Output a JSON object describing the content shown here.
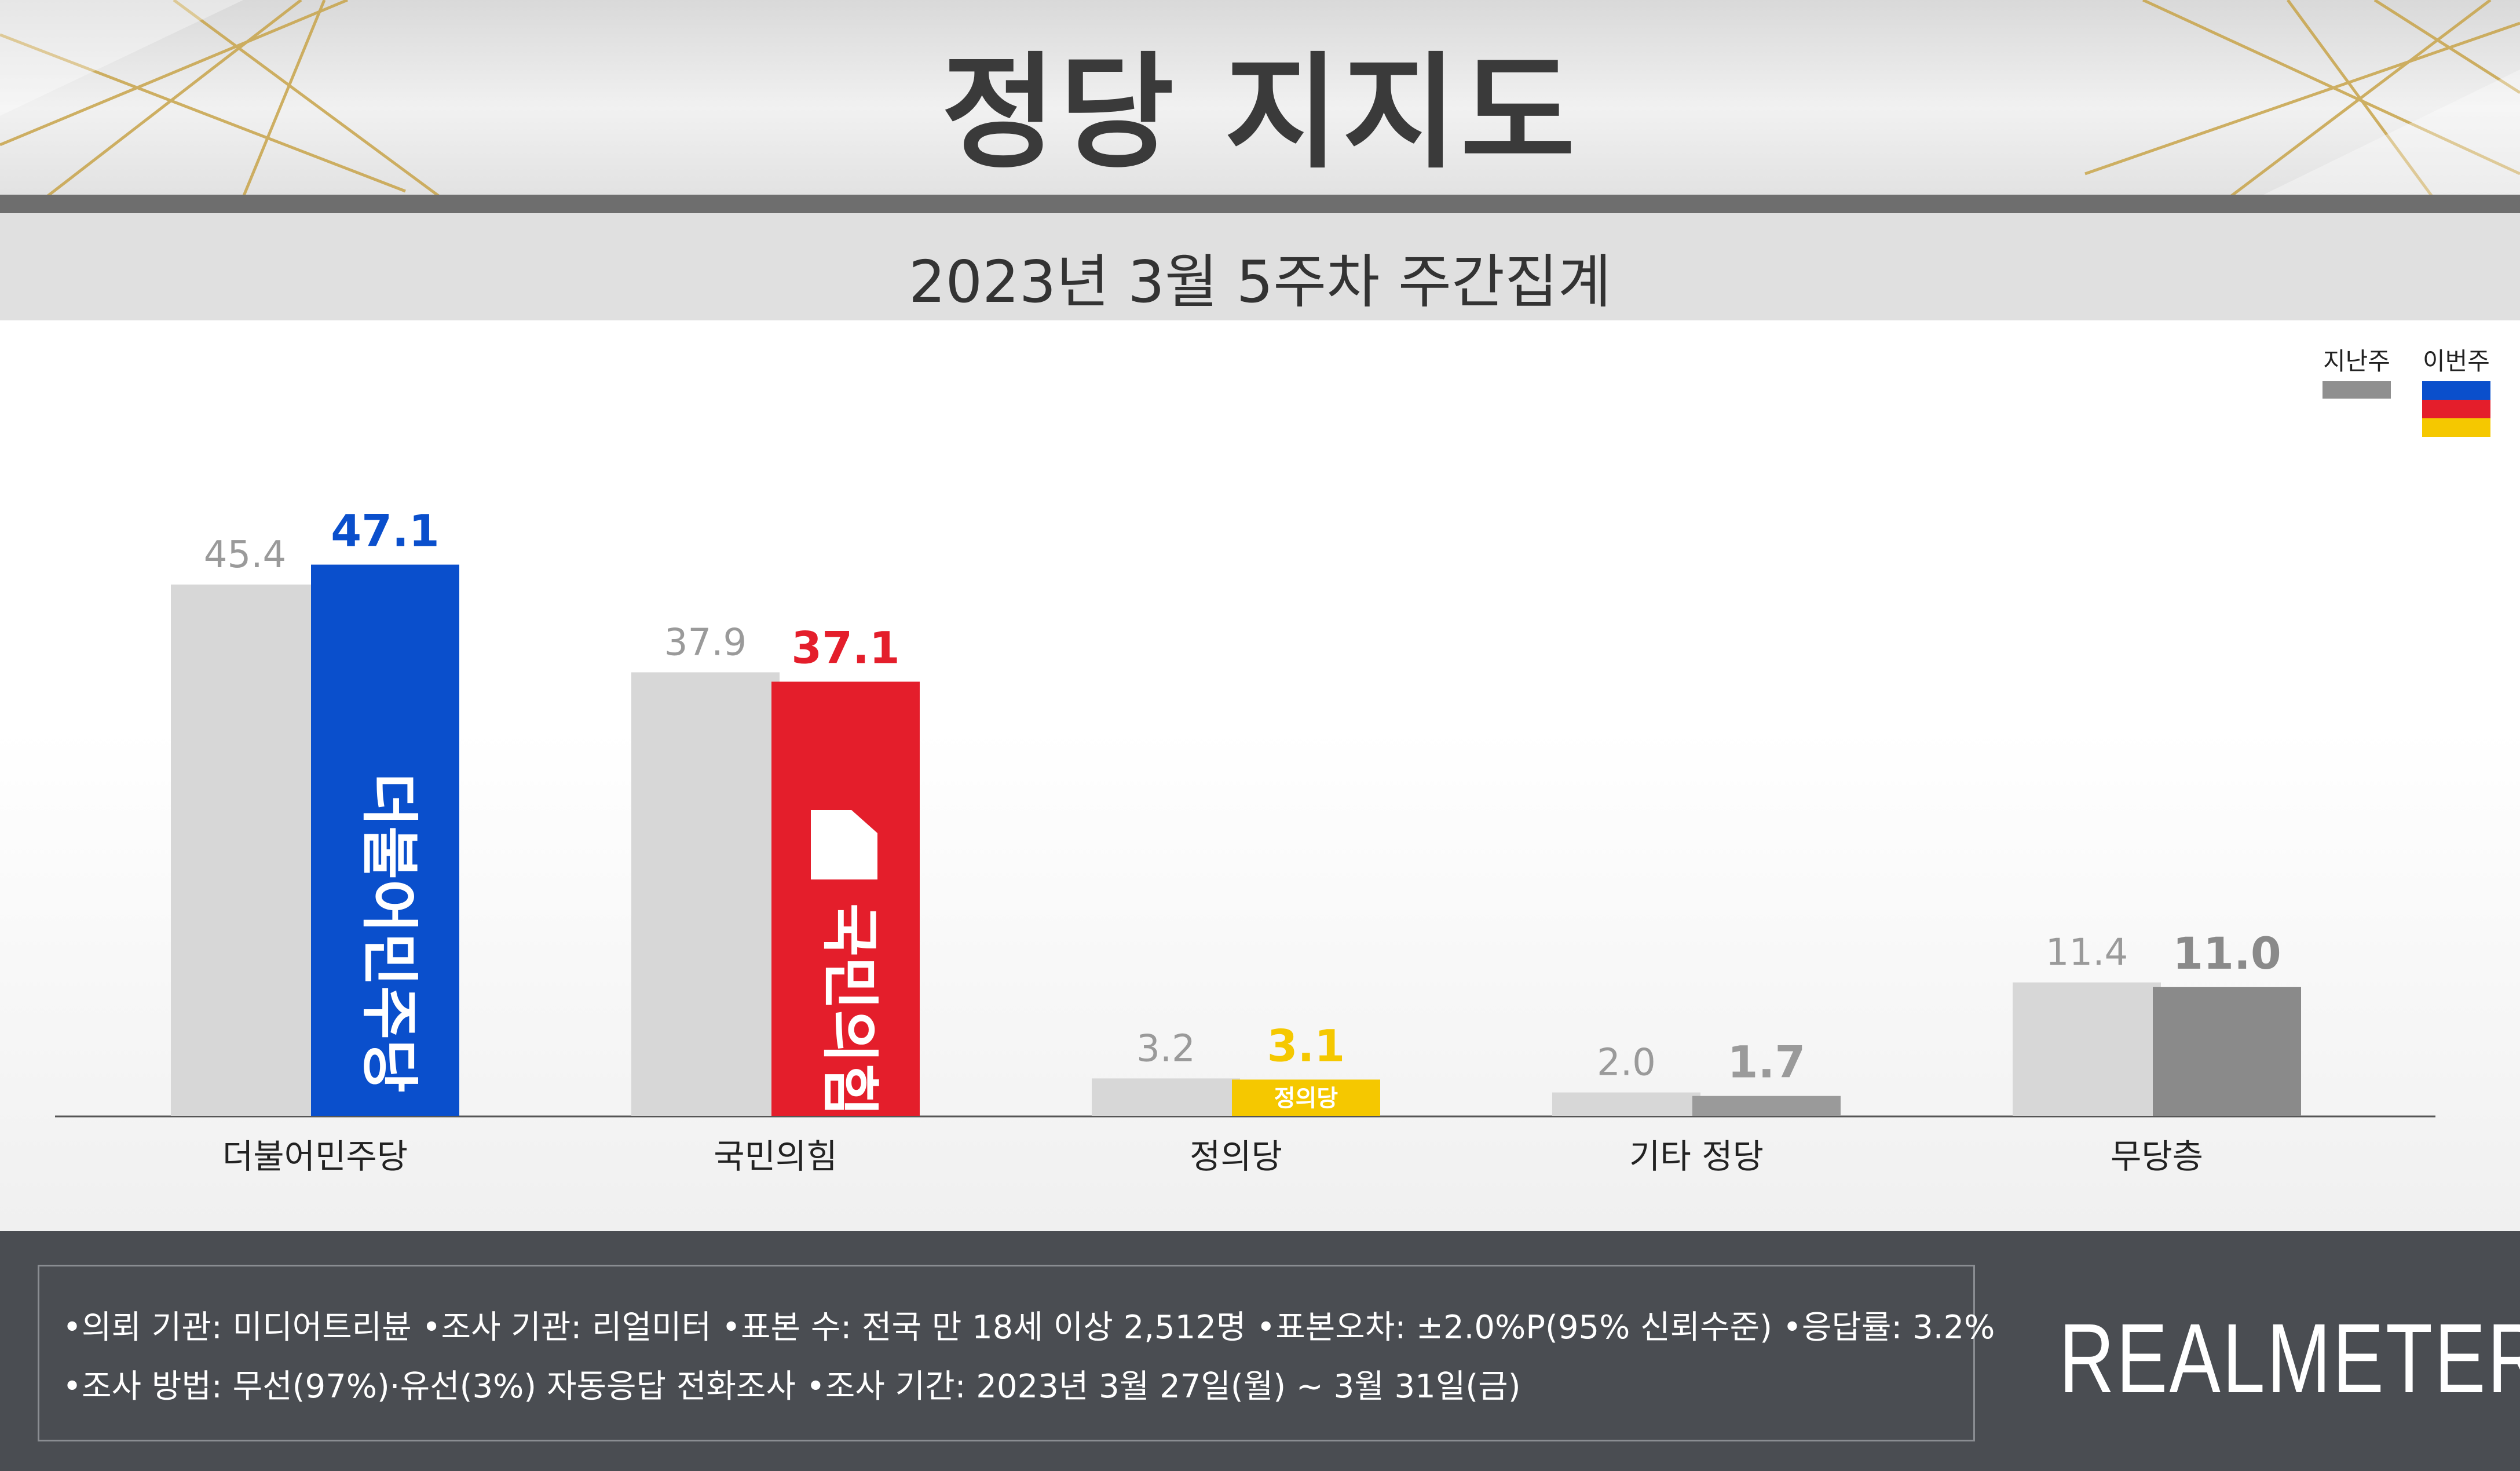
{
  "title": "정당 지지도",
  "subtitle": "2023년 3월 5주차 주간집계",
  "legend": {
    "previous": "지난주",
    "current": "이번주"
  },
  "colors": {
    "previous_bar": "#d7d7d7",
    "previous_label": "#9a9a9a",
    "democratic": "#0a4fcc",
    "ppp": "#e41e2b",
    "justice": "#f5c800",
    "other": "#9a9a9a",
    "none": "#8a8a8a"
  },
  "chart_data": {
    "type": "bar",
    "categories": [
      "더불어민주당",
      "국민의힘",
      "정의당",
      "기타 정당",
      "무당층"
    ],
    "series": [
      {
        "name": "지난주",
        "values": [
          45.4,
          37.9,
          3.2,
          2.0,
          11.4
        ]
      },
      {
        "name": "이번주",
        "values": [
          47.1,
          37.1,
          3.1,
          1.7,
          11.0
        ]
      }
    ],
    "value_labels": {
      "지난주": [
        "45.4",
        "37.9",
        "3.2",
        "2.0",
        "11.4"
      ],
      "이번주": [
        "47.1",
        "37.1",
        "3.1",
        "1.7",
        "11.0"
      ]
    },
    "ylim": [
      0,
      50
    ],
    "grid": false,
    "legend_position": "top-right"
  },
  "bar_logos": {
    "democratic": "더불어민주당",
    "ppp": "국민의힘",
    "justice": "정의당"
  },
  "footer": {
    "note1": "•의뢰 기관: 미디어트리뷴  •조사 기관: 리얼미터 •표본 수: 전국 만 18세 이상 2,512명 •표본오차: ±2.0%P(95% 신뢰수준) •응답률: 3.2%",
    "note2": "•조사 방법: 무선(97%)·유선(3%) 자동응답 전화조사 •조사 기간: 2023년 3월 27일(월) ~ 3월 31일(금)",
    "brand": "REALMETER"
  }
}
